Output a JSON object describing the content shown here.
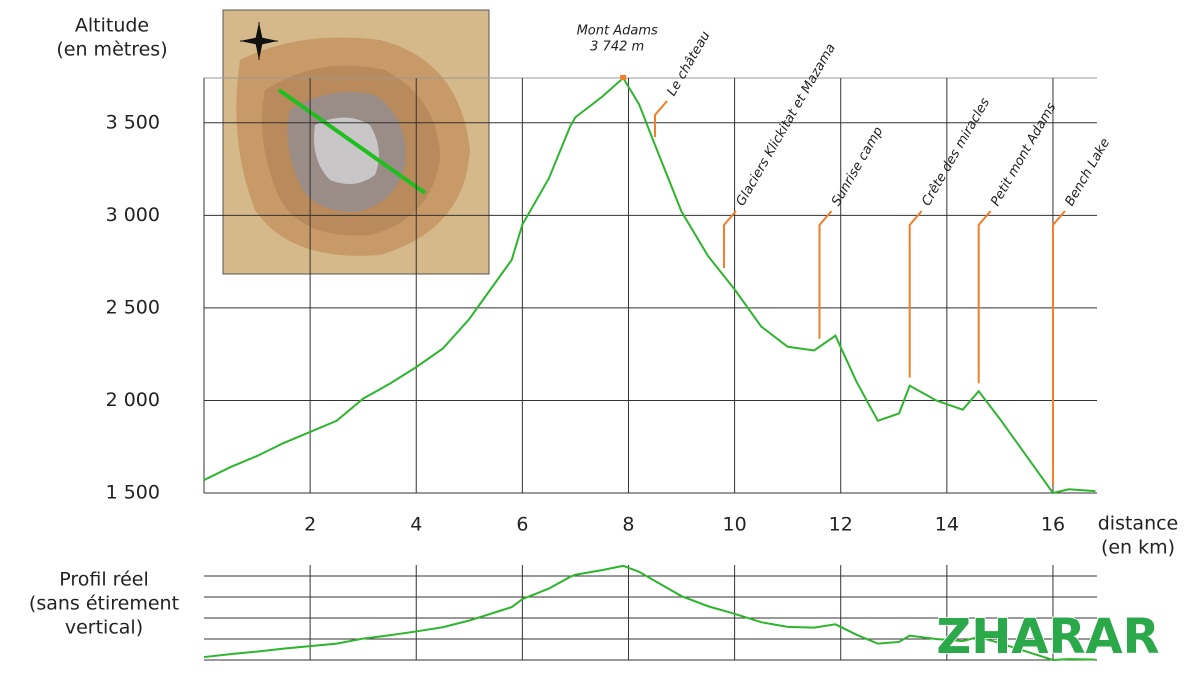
{
  "chart_data": {
    "type": "line",
    "y_label": [
      "Altitude",
      "(en mètres)"
    ],
    "x_label": [
      "distance",
      "(en km)"
    ],
    "panel_label": [
      "Profil réel",
      "(sans étirement",
      "vertical)"
    ],
    "watermark": "ZHARAR",
    "xlim": [
      0,
      16.83
    ],
    "ylim": [
      1500,
      3742
    ],
    "xticks": [
      2,
      4,
      6,
      8,
      10,
      12,
      14,
      16
    ],
    "yticks": [
      {
        "value": 1500,
        "label": "1 500"
      },
      {
        "value": 2000,
        "label": "2 000"
      },
      {
        "value": 2500,
        "label": "2 500"
      },
      {
        "value": 3000,
        "label": "3 000"
      },
      {
        "value": 3500,
        "label": "3 500"
      }
    ],
    "grid": true,
    "x": [
      0,
      0.5,
      1,
      1.5,
      2,
      2.5,
      3,
      3.5,
      4,
      4.5,
      5,
      5.5,
      5.8,
      6,
      6.5,
      6.9,
      7,
      7.5,
      7.9,
      8.2,
      8.5,
      9,
      9.5,
      10,
      10.5,
      11,
      11.5,
      11.9,
      12.3,
      12.7,
      13.1,
      13.3,
      13.8,
      14.3,
      14.6,
      15,
      15.5,
      16,
      16.3,
      16.8
    ],
    "series": [
      {
        "color": "#2db52d",
        "values": [
          1570,
          1640,
          1700,
          1770,
          1830,
          1890,
          2010,
          2090,
          2180,
          2280,
          2440,
          2640,
          2760,
          2950,
          3200,
          3480,
          3530,
          3640,
          3742,
          3600,
          3380,
          3020,
          2780,
          2600,
          2400,
          2290,
          2270,
          2350,
          2100,
          1890,
          1930,
          2080,
          2000,
          1950,
          2050,
          1900,
          1700,
          1500,
          1520,
          1510
        ]
      }
    ],
    "peak": {
      "name": "Mont Adams",
      "label": "3 742 m",
      "x": 7.9,
      "value": 3742
    },
    "annotations": [
      {
        "text": "Le château",
        "x": 8.5
      },
      {
        "text": "Glaciers Klickitat et Mazama",
        "x": 9.8
      },
      {
        "text": "Sunrise camp",
        "x": 11.6
      },
      {
        "text": "Crête des miracles",
        "x": 13.3
      },
      {
        "text": "Petit mont Adams",
        "x": 14.6
      },
      {
        "text": "Bench Lake",
        "x": 16
      }
    ],
    "annotation_color": "#f07f2a"
  }
}
